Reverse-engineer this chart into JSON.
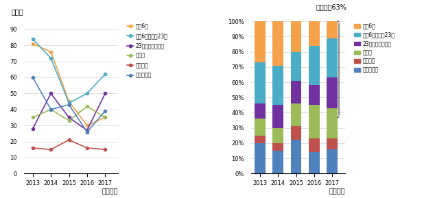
{
  "years": [
    2013,
    2014,
    2015,
    2016,
    2017
  ],
  "line_data": {
    "都心6区": [
      81,
      76,
      45,
      30,
      35
    ],
    "都心6区以外の23区": [
      84,
      72,
      44,
      50,
      62
    ],
    "23区以外の東京圏": [
      28,
      50,
      35,
      27,
      50
    ],
    "大阪圏": [
      35,
      40,
      33,
      42,
      35
    ],
    "名古屋圏": [
      16,
      15,
      21,
      16,
      15
    ],
    "その他地域": [
      60,
      40,
      43,
      26,
      39
    ]
  },
  "line_colors": {
    "都心6区": "#f4a14a",
    "都心6区以外の23区": "#4bacc6",
    "23区以外の東京圏": "#7030a0",
    "大阪圏": "#9bbb59",
    "名古屋圏": "#c0504d",
    "その他地域": "#4f81bd"
  },
  "bar_data": {
    "その他地域": [
      20,
      15,
      22,
      14,
      16
    ],
    "名古屋圏": [
      5,
      5,
      9,
      9,
      7
    ],
    "大阪圏": [
      11,
      10,
      15,
      22,
      20
    ],
    "23区以外の東京圏": [
      10,
      15,
      15,
      13,
      20
    ],
    "都心6区以外の23区": [
      27,
      26,
      19,
      26,
      26
    ],
    "都心6区": [
      27,
      29,
      20,
      16,
      11
    ]
  },
  "bar_colors": {
    "その他地域": "#4f81bd",
    "名古屋圏": "#c0504d",
    "大阪圏": "#9bbb59",
    "23区以外の東京圏": "#7030a0",
    "都心6区以外の23区": "#4bacc6",
    "都心6区": "#f4a14a"
  },
  "line_ylabel": "（件）",
  "line_xlabel": "（年度）",
  "bar_xlabel": "（年度）",
  "annotation_text": "東京圏は63%",
  "line_ylim": [
    0,
    95
  ],
  "line_yticks": [
    0,
    10,
    20,
    30,
    40,
    50,
    60,
    70,
    80,
    90
  ],
  "bar_yticks": [
    0,
    10,
    20,
    30,
    40,
    50,
    60,
    70,
    80,
    90,
    100
  ],
  "legend_order_line": [
    "都心6区",
    "都心6区以外の23区",
    "23区以外の東京圏",
    "大阪圏",
    "名古屋圏",
    "その他地域"
  ],
  "legend_order_bar": [
    "都心6区",
    "都心6区以外の23区",
    "23区以外の東京圏",
    "大阪圏",
    "名古屋圏",
    "その他地域"
  ],
  "bar_order": [
    "その他地域",
    "名古屋圏",
    "大阪圏",
    "23区以外の東京圏",
    "都心6区以外の23区",
    "都心6区"
  ]
}
